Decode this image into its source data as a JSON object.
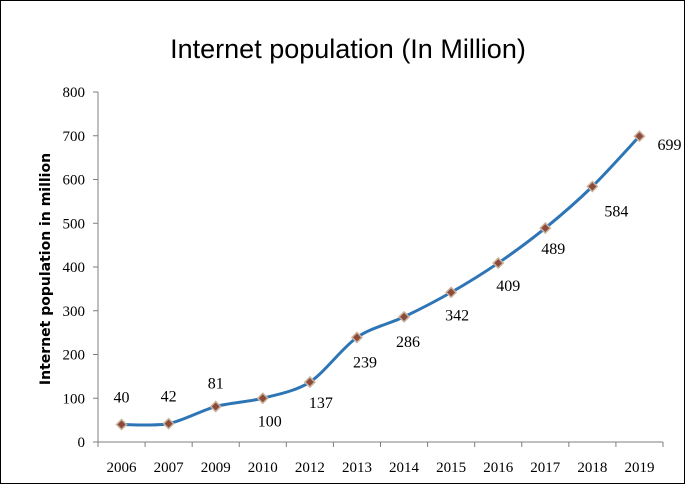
{
  "chart_data": {
    "type": "line",
    "title": "Internet population (In Million)",
    "xlabel": "",
    "ylabel": "Internet population in million",
    "categories": [
      "2006",
      "2007",
      "2009",
      "2010",
      "2012",
      "2013",
      "2014",
      "2015",
      "2016",
      "2017",
      "2018",
      "2019"
    ],
    "series": [
      {
        "values": [
          40,
          42,
          81,
          100,
          137,
          239,
          286,
          342,
          409,
          489,
          584,
          699
        ]
      }
    ],
    "data_labels": [
      "40",
      "42",
      "81",
      "100",
      "137",
      "239",
      "286",
      "342",
      "409",
      "489",
      "584",
      "699"
    ],
    "ylim": [
      0,
      800
    ],
    "yticks": [
      "0",
      "100",
      "200",
      "300",
      "400",
      "500",
      "600",
      "700",
      "800"
    ],
    "grid": false,
    "legend": "none",
    "colors": {
      "line": "#2E75B6",
      "marker_fill": "#8B4A3C",
      "marker_edge": "#C9B29A"
    }
  }
}
